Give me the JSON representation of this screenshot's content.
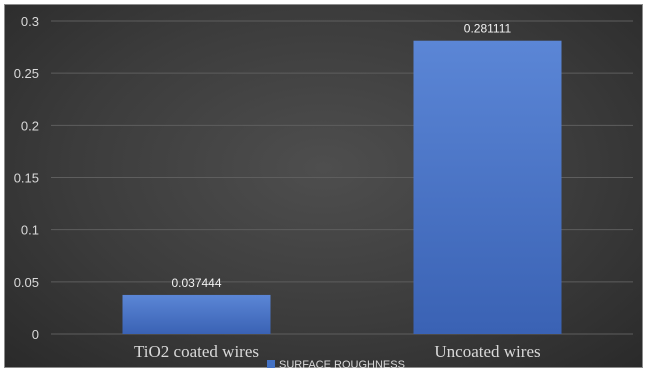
{
  "chart_data": {
    "type": "bar",
    "title": "",
    "xlabel": "",
    "ylabel": "",
    "categories": [
      "TiO2 coated wires",
      "Uncoated wires"
    ],
    "series": [
      {
        "name": "SURFACE ROUGHNESS",
        "values": [
          0.037444,
          0.281111
        ],
        "color": "#4472c4"
      }
    ],
    "data_labels": [
      "0.037444",
      "0.281111"
    ],
    "ylim": [
      0,
      0.3
    ],
    "yticks": [
      0,
      0.05,
      0.1,
      0.15,
      0.2,
      0.25,
      0.3
    ],
    "ytick_labels": [
      "0",
      "0.05",
      "0.1",
      "0.15",
      "0.2",
      "0.25",
      "0.3"
    ],
    "grid": true,
    "legend_position": "bottom"
  },
  "colors": {
    "background": "#3c3c3c",
    "gridline": "#5e5e5e",
    "bar": "#4472c4",
    "text": "#d9d9d9"
  }
}
